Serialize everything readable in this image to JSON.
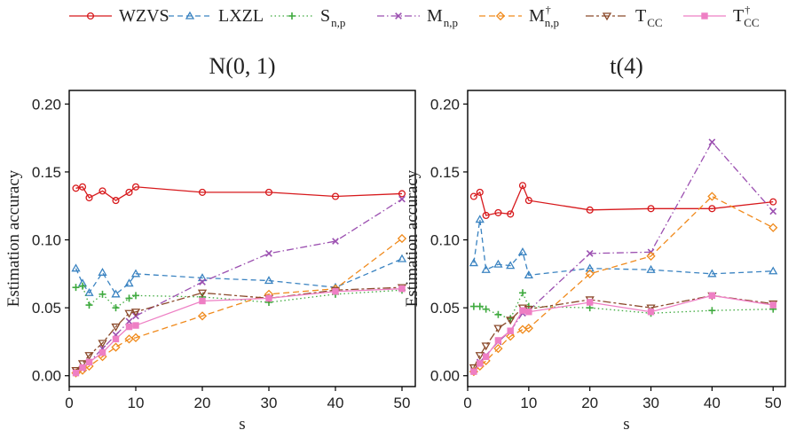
{
  "legend": [
    {
      "key": "wzvs",
      "label": "WZVS",
      "sub": "",
      "sup": "",
      "color": "#D7191C",
      "marker": "circle",
      "dash": ""
    },
    {
      "key": "lxzl",
      "label": "LXZL",
      "sub": "",
      "sup": "",
      "color": "#3A83C1",
      "marker": "triangle",
      "dash": "6,4"
    },
    {
      "key": "snp",
      "label": "S",
      "sub": "n,p",
      "sup": "",
      "color": "#3FAA3F",
      "marker": "plus",
      "dash": "1.5,3"
    },
    {
      "key": "mnp",
      "label": "M",
      "sub": "n,p",
      "sup": "",
      "color": "#9B4FB0",
      "marker": "cross",
      "dash": "8,3,1.5,3"
    },
    {
      "key": "mnpd",
      "label": "M",
      "sub": "n,p",
      "sup": "†",
      "color": "#F08A1C",
      "marker": "diamond",
      "dash": "7,4"
    },
    {
      "key": "tcc",
      "label": "T",
      "sub": "CC",
      "sup": "",
      "color": "#8B4A2B",
      "marker": "triangle-down",
      "dash": "9,3,3,3"
    },
    {
      "key": "tccd",
      "label": "T",
      "sub": "CC",
      "sup": "†",
      "color": "#EE7FC4",
      "marker": "square",
      "dash": ""
    }
  ],
  "chart_data": [
    {
      "type": "line",
      "title": "N(0, 1)",
      "xlabel": "s",
      "ylabel": "Estimation accuracy",
      "xlim": [
        0,
        52
      ],
      "ylim": [
        -0.008,
        0.21
      ],
      "xticks": [
        "0",
        "10",
        "20",
        "30",
        "40",
        "50"
      ],
      "yticks": [
        "0.00",
        "0.05",
        "0.10",
        "0.15",
        "0.20"
      ],
      "x": [
        1,
        2,
        3,
        5,
        7,
        9,
        10,
        20,
        30,
        40,
        50
      ],
      "series": [
        {
          "name": "WZVS",
          "values": [
            0.138,
            0.139,
            0.131,
            0.136,
            0.129,
            0.135,
            0.139,
            0.135,
            0.135,
            0.132,
            0.134
          ]
        },
        {
          "name": "LXZL",
          "values": [
            0.079,
            0.068,
            0.061,
            0.076,
            0.06,
            0.068,
            0.075,
            0.072,
            0.07,
            0.065,
            0.086
          ]
        },
        {
          "name": "Sn,p",
          "values": [
            0.065,
            0.066,
            0.052,
            0.06,
            0.05,
            0.057,
            0.059,
            0.058,
            0.054,
            0.06,
            0.063
          ]
        },
        {
          "name": "Mn,p",
          "values": [
            0.003,
            0.005,
            0.01,
            0.02,
            0.03,
            0.04,
            0.044,
            0.069,
            0.09,
            0.099,
            0.13
          ]
        },
        {
          "name": "Mn,p†",
          "values": [
            0.002,
            0.004,
            0.007,
            0.014,
            0.021,
            0.027,
            0.028,
            0.044,
            0.06,
            0.064,
            0.101
          ]
        },
        {
          "name": "TCC",
          "values": [
            0.004,
            0.009,
            0.015,
            0.024,
            0.036,
            0.046,
            0.047,
            0.061,
            0.057,
            0.063,
            0.065
          ]
        },
        {
          "name": "TCC†",
          "values": [
            0.002,
            0.006,
            0.01,
            0.017,
            0.027,
            0.036,
            0.037,
            0.055,
            0.057,
            0.062,
            0.064
          ]
        }
      ]
    },
    {
      "type": "line",
      "title": "t(4)",
      "xlabel": "s",
      "ylabel": "Estimation accuracy",
      "xlim": [
        0,
        52
      ],
      "ylim": [
        -0.008,
        0.21
      ],
      "xticks": [
        "0",
        "10",
        "20",
        "30",
        "40",
        "50"
      ],
      "yticks": [
        "0.00",
        "0.05",
        "0.10",
        "0.15",
        "0.20"
      ],
      "x": [
        1,
        2,
        3,
        5,
        7,
        9,
        10,
        20,
        30,
        40,
        50
      ],
      "series": [
        {
          "name": "WZVS",
          "values": [
            0.132,
            0.135,
            0.118,
            0.12,
            0.119,
            0.14,
            0.129,
            0.122,
            0.123,
            0.123,
            0.128
          ]
        },
        {
          "name": "LXZL",
          "values": [
            0.083,
            0.115,
            0.078,
            0.082,
            0.081,
            0.091,
            0.074,
            0.079,
            0.078,
            0.075,
            0.077
          ]
        },
        {
          "name": "Sn,p",
          "values": [
            0.051,
            0.051,
            0.049,
            0.045,
            0.042,
            0.061,
            0.051,
            0.05,
            0.046,
            0.048,
            0.049
          ]
        },
        {
          "name": "Mn,p",
          "values": [
            0.004,
            0.01,
            0.015,
            0.025,
            0.033,
            0.046,
            0.048,
            0.09,
            0.091,
            0.172,
            0.121
          ]
        },
        {
          "name": "Mn,p†",
          "values": [
            0.003,
            0.007,
            0.011,
            0.02,
            0.029,
            0.034,
            0.035,
            0.075,
            0.088,
            0.132,
            0.109
          ]
        },
        {
          "name": "TCC",
          "values": [
            0.006,
            0.015,
            0.022,
            0.035,
            0.041,
            0.05,
            0.049,
            0.056,
            0.05,
            0.059,
            0.053
          ]
        },
        {
          "name": "TCC†",
          "values": [
            0.003,
            0.009,
            0.014,
            0.026,
            0.033,
            0.048,
            0.047,
            0.054,
            0.047,
            0.059,
            0.052
          ]
        }
      ]
    }
  ]
}
